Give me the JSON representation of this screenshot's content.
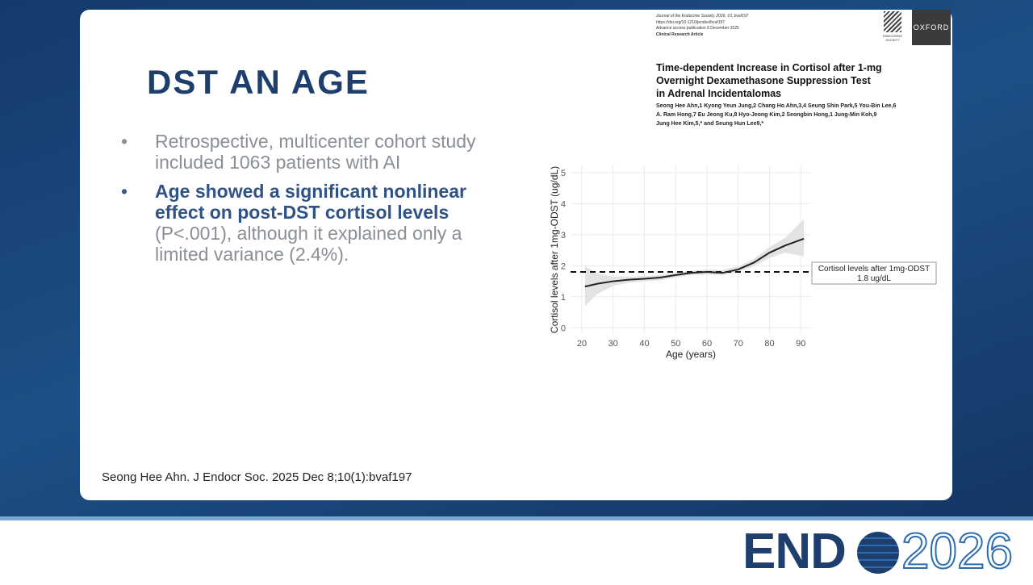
{
  "slide": {
    "title": "DST AN AGE",
    "bullets": [
      {
        "text": "Retrospective, multicenter cohort study included 1063 patients with AI"
      },
      {
        "bold": "Age showed a significant nonlinear effect on post-DST cortisol levels",
        "text": " (P<.001), although it explained only a limited variance (2.4%)."
      }
    ],
    "citation": "Seong Hee Ahn. J Endocr Soc. 2025 Dec 8;10(1):bvaf197"
  },
  "article": {
    "meta": [
      "Journal of the Endocrine Society, 2026, 10, bvaf197",
      "https://doi.org/10.1210/jendso/bvaf197",
      "Advance access publication 8 December 2025",
      "Clinical Research Article"
    ],
    "society": "ENDOCRINE SOCIETY",
    "publisher": "OXFORD",
    "title": [
      "Time-dependent Increase in Cortisol after 1-mg",
      "Overnight Dexamethasone Suppression Test",
      "in Adrenal Incidentalomas"
    ],
    "authors": [
      "Seong Hee Ahn,1 Kyong Yeun Jung,2 Chang Ho Ahn,3,4 Seung Shin Park,5 You-Bin Lee,6",
      "A. Ram Hong,7 Eu Jeong Ku,8 Hyo-Jeong Kim,2 Seongbin Hong,1 Jung-Min Koh,9",
      "Jung Hee Kim,5,* and Seung Hun Lee9,*"
    ]
  },
  "chart_data": {
    "type": "line",
    "x_label": "Age (years)",
    "y_label": "Cortisol levels after 1mg-ODST (ug/dL)",
    "x": [
      21,
      25,
      30,
      35,
      40,
      45,
      50,
      55,
      60,
      65,
      70,
      75,
      80,
      85,
      91
    ],
    "series": [
      {
        "color": "#222222",
        "values": [
          1.33,
          1.42,
          1.5,
          1.55,
          1.58,
          1.62,
          1.7,
          1.77,
          1.8,
          1.77,
          1.88,
          2.1,
          2.42,
          2.65,
          2.87
        ]
      }
    ],
    "band": {
      "color": "#e3e3e3",
      "lower": [
        0.7,
        1.1,
        1.35,
        1.45,
        1.5,
        1.53,
        1.62,
        1.7,
        1.72,
        1.7,
        1.8,
        1.98,
        2.25,
        2.42,
        2.3
      ],
      "upper": [
        2.0,
        1.75,
        1.65,
        1.65,
        1.66,
        1.7,
        1.78,
        1.84,
        1.88,
        1.86,
        1.98,
        2.22,
        2.6,
        2.9,
        3.5
      ]
    },
    "reference_line": {
      "value": 1.8,
      "title": "Cortisol levels after 1mg-ODST",
      "label": "1.8 ug/dL"
    },
    "xlim": [
      16.4,
      93.3
    ],
    "xticks": [
      20,
      30,
      40,
      50,
      60,
      70,
      80,
      90
    ],
    "ylim": [
      -0.2,
      5.23
    ],
    "yticks": [
      0,
      1,
      2,
      3,
      4,
      5
    ],
    "grid": true
  },
  "logo": {
    "left": "END",
    "right": "2026"
  }
}
